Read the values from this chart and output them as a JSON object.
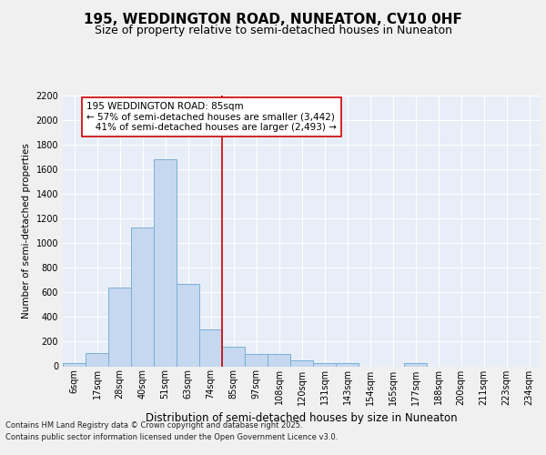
{
  "title1": "195, WEDDINGTON ROAD, NUNEATON, CV10 0HF",
  "title2": "Size of property relative to semi-detached houses in Nuneaton",
  "xlabel": "Distribution of semi-detached houses by size in Nuneaton",
  "ylabel": "Number of semi-detached properties",
  "categories": [
    "6sqm",
    "17sqm",
    "28sqm",
    "40sqm",
    "51sqm",
    "63sqm",
    "74sqm",
    "85sqm",
    "97sqm",
    "108sqm",
    "120sqm",
    "131sqm",
    "143sqm",
    "154sqm",
    "165sqm",
    "177sqm",
    "188sqm",
    "200sqm",
    "211sqm",
    "223sqm",
    "234sqm"
  ],
  "values": [
    25,
    110,
    640,
    1130,
    1680,
    670,
    300,
    160,
    100,
    100,
    50,
    25,
    25,
    0,
    0,
    25,
    0,
    0,
    0,
    0,
    0
  ],
  "bar_color": "#c5d8f0",
  "bar_edge_color": "#7aafd4",
  "vline_color": "#cc0000",
  "vline_x_index": 6.5,
  "annotation_text": "195 WEDDINGTON ROAD: 85sqm\n← 57% of semi-detached houses are smaller (3,442)\n   41% of semi-detached houses are larger (2,493) →",
  "annotation_box_color": "#ffffff",
  "annotation_box_edge": "#cc0000",
  "ylim_max": 2200,
  "yticks": [
    0,
    200,
    400,
    600,
    800,
    1000,
    1200,
    1400,
    1600,
    1800,
    2000,
    2200
  ],
  "bg_color": "#f0f0f0",
  "plot_bg_color": "#e8eef7",
  "footer1": "Contains HM Land Registry data © Crown copyright and database right 2025.",
  "footer2": "Contains public sector information licensed under the Open Government Licence v3.0.",
  "title1_fontsize": 11,
  "title2_fontsize": 9,
  "ylabel_fontsize": 7.5,
  "xlabel_fontsize": 8.5,
  "tick_fontsize": 7,
  "annotation_fontsize": 7.5,
  "footer_fontsize": 6
}
